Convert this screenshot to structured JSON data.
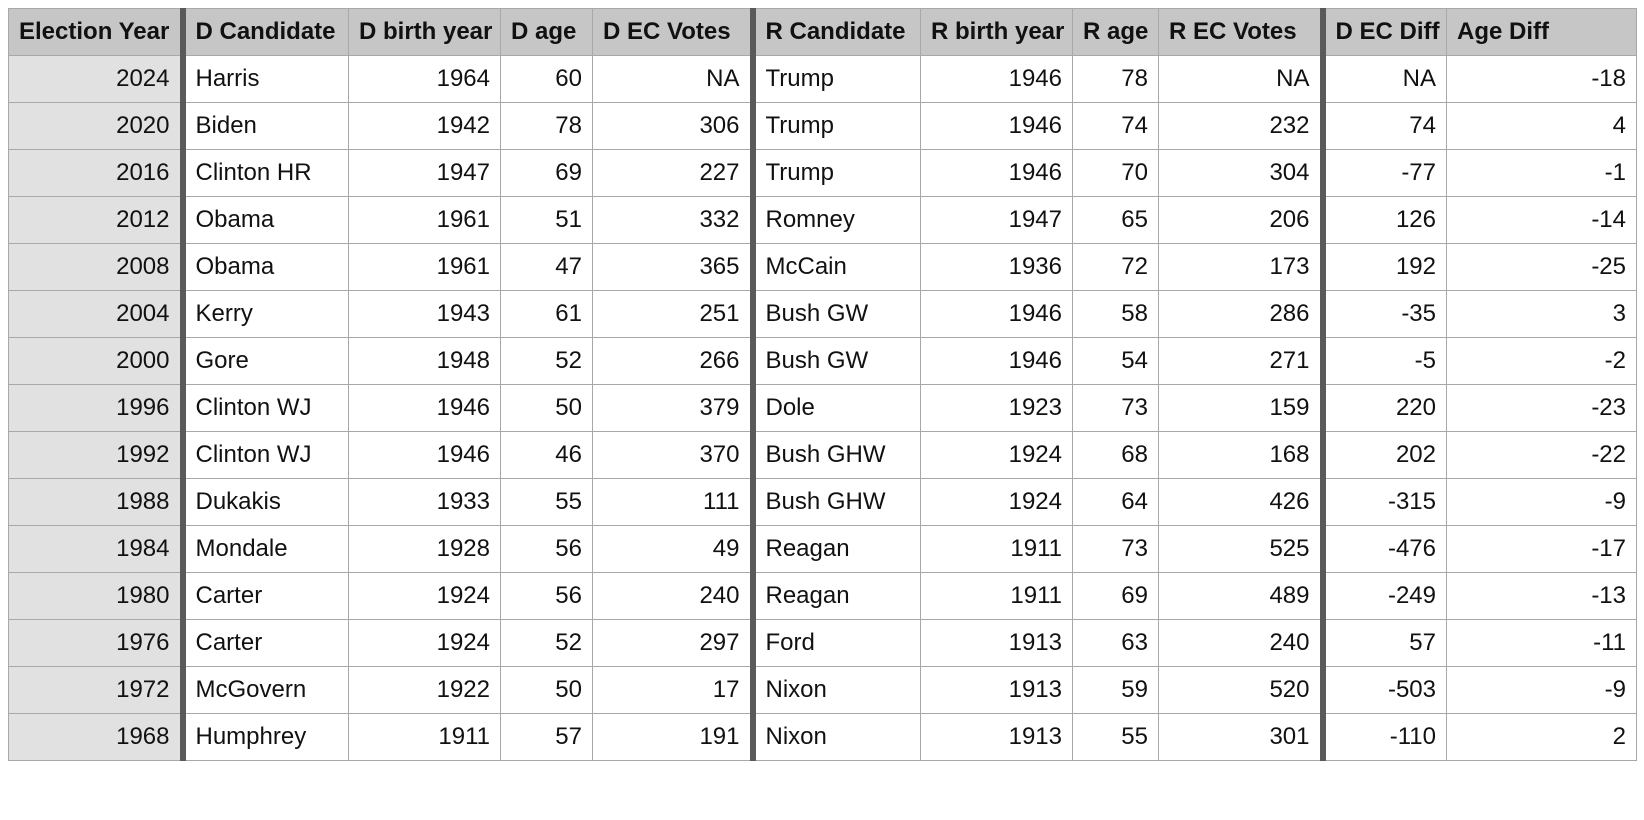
{
  "table": {
    "columns": [
      {
        "label": "Election Year",
        "key": "year"
      },
      {
        "label": "D Candidate",
        "key": "d_candidate"
      },
      {
        "label": "D birth year",
        "key": "d_birth"
      },
      {
        "label": "D age",
        "key": "d_age"
      },
      {
        "label": "D EC Votes",
        "key": "d_ec"
      },
      {
        "label": "R Candidate",
        "key": "r_candidate"
      },
      {
        "label": "R birth year",
        "key": "r_birth"
      },
      {
        "label": "R age",
        "key": "r_age"
      },
      {
        "label": "R EC Votes",
        "key": "r_ec"
      },
      {
        "label": "D EC Diff",
        "key": "ec_diff"
      },
      {
        "label": "Age Diff",
        "key": "age_diff"
      }
    ],
    "rows": [
      [
        "2024",
        "Harris",
        "1964",
        "60",
        "NA",
        "Trump",
        "1946",
        "78",
        "NA",
        "NA",
        "-18"
      ],
      [
        "2020",
        "Biden",
        "1942",
        "78",
        "306",
        "Trump",
        "1946",
        "74",
        "232",
        "74",
        "4"
      ],
      [
        "2016",
        "Clinton HR",
        "1947",
        "69",
        "227",
        "Trump",
        "1946",
        "70",
        "304",
        "-77",
        "-1"
      ],
      [
        "2012",
        "Obama",
        "1961",
        "51",
        "332",
        "Romney",
        "1947",
        "65",
        "206",
        "126",
        "-14"
      ],
      [
        "2008",
        "Obama",
        "1961",
        "47",
        "365",
        "McCain",
        "1936",
        "72",
        "173",
        "192",
        "-25"
      ],
      [
        "2004",
        "Kerry",
        "1943",
        "61",
        "251",
        "Bush GW",
        "1946",
        "58",
        "286",
        "-35",
        "3"
      ],
      [
        "2000",
        "Gore",
        "1948",
        "52",
        "266",
        "Bush GW",
        "1946",
        "54",
        "271",
        "-5",
        "-2"
      ],
      [
        "1996",
        "Clinton WJ",
        "1946",
        "50",
        "379",
        "Dole",
        "1923",
        "73",
        "159",
        "220",
        "-23"
      ],
      [
        "1992",
        "Clinton WJ",
        "1946",
        "46",
        "370",
        "Bush GHW",
        "1924",
        "68",
        "168",
        "202",
        "-22"
      ],
      [
        "1988",
        "Dukakis",
        "1933",
        "55",
        "111",
        "Bush GHW",
        "1924",
        "64",
        "426",
        "-315",
        "-9"
      ],
      [
        "1984",
        "Mondale",
        "1928",
        "56",
        "49",
        "Reagan",
        "1911",
        "73",
        "525",
        "-476",
        "-17"
      ],
      [
        "1980",
        "Carter",
        "1924",
        "56",
        "240",
        "Reagan",
        "1911",
        "69",
        "489",
        "-249",
        "-13"
      ],
      [
        "1976",
        "Carter",
        "1924",
        "52",
        "297",
        "Ford",
        "1913",
        "63",
        "240",
        "57",
        "-11"
      ],
      [
        "1972",
        "McGovern",
        "1922",
        "50",
        "17",
        "Nixon",
        "1913",
        "59",
        "520",
        "-503",
        "-9"
      ],
      [
        "1968",
        "Humphrey",
        "1911",
        "57",
        "191",
        "Nixon",
        "1913",
        "55",
        "301",
        "-110",
        "2"
      ]
    ]
  }
}
